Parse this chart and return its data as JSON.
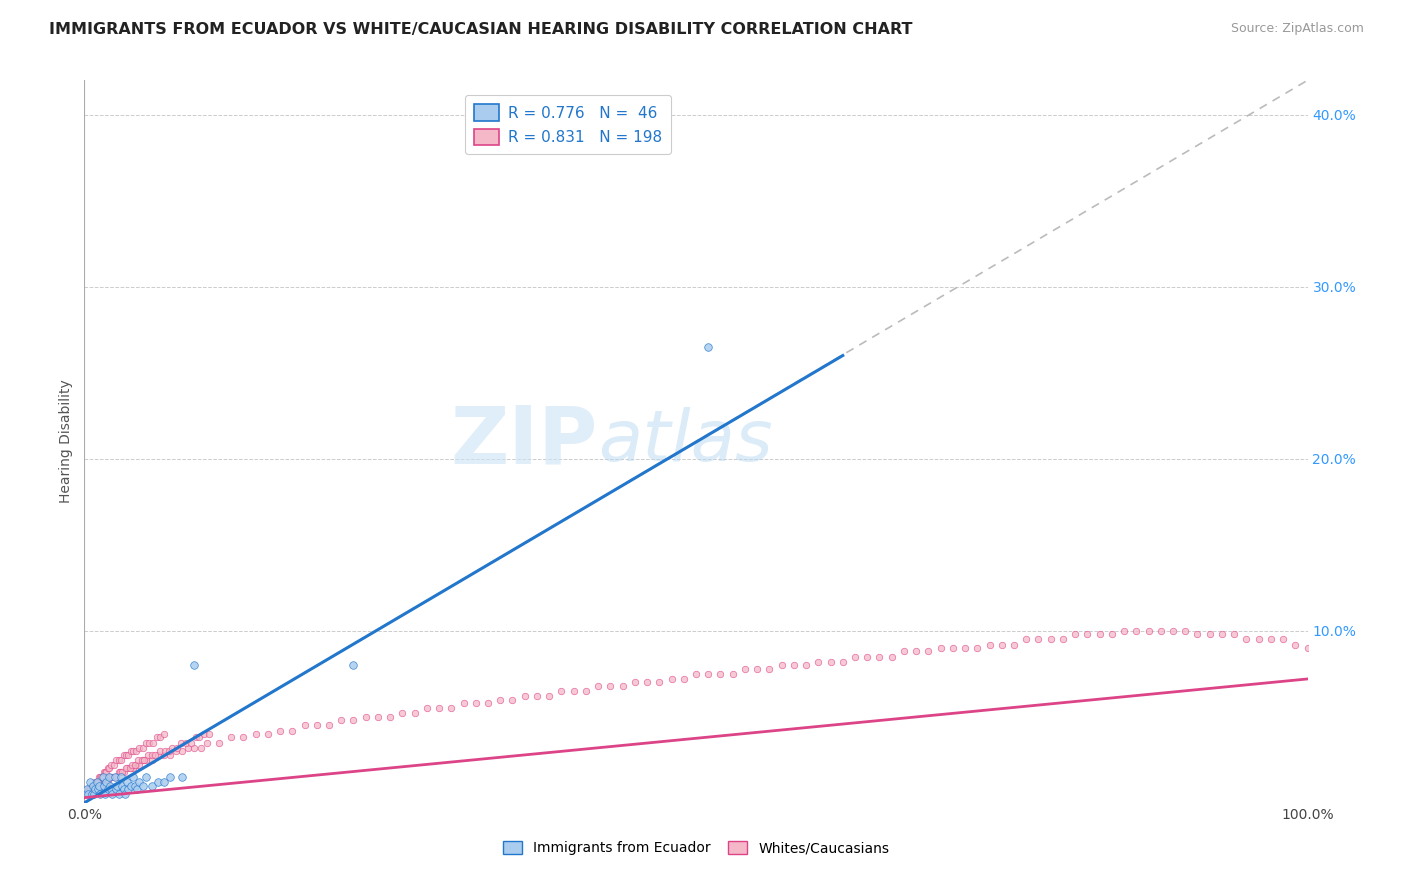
{
  "title": "IMMIGRANTS FROM ECUADOR VS WHITE/CAUCASIAN HEARING DISABILITY CORRELATION CHART",
  "source": "Source: ZipAtlas.com",
  "ylabel": "Hearing Disability",
  "xlim": [
    0.0,
    1.0
  ],
  "ylim": [
    0.0,
    0.42
  ],
  "x_ticks": [
    0.0,
    0.2,
    0.4,
    0.6,
    0.8,
    1.0
  ],
  "x_tick_labels": [
    "0.0%",
    "",
    "",
    "",
    "",
    "100.0%"
  ],
  "y_ticks_right": [
    0.0,
    0.1,
    0.2,
    0.3,
    0.4
  ],
  "y_tick_labels_right": [
    "",
    "10.0%",
    "20.0%",
    "30.0%",
    "40.0%"
  ],
  "legend_line1": "R = 0.776   N =  46",
  "legend_line2": "R = 0.831   N = 198",
  "legend_label1": "Immigrants from Ecuador",
  "legend_label2": "Whites/Caucasians",
  "color_blue_fill": "#aaccee",
  "color_blue_line": "#2277cc",
  "color_pink_fill": "#f4b8c8",
  "color_pink_line": "#dd4488",
  "color_ref_line": "#bbbbbb",
  "color_legend_text": "#2277cc",
  "color_grid": "#cccccc",
  "watermark_zip": "ZIP",
  "watermark_atlas": "atlas",
  "background_color": "#ffffff",
  "blue_line_x": [
    0.0,
    0.62
  ],
  "blue_line_y": [
    0.0,
    0.26
  ],
  "pink_line_x": [
    0.0,
    1.0
  ],
  "pink_line_y": [
    0.003,
    0.072
  ],
  "ref_line_x": [
    0.0,
    1.0
  ],
  "ref_line_y": [
    0.0,
    0.42
  ],
  "blue_scatter_x": [
    0.0,
    0.002,
    0.003,
    0.005,
    0.006,
    0.007,
    0.008,
    0.009,
    0.01,
    0.011,
    0.012,
    0.013,
    0.015,
    0.016,
    0.017,
    0.018,
    0.019,
    0.02,
    0.021,
    0.022,
    0.023,
    0.025,
    0.026,
    0.027,
    0.028,
    0.03,
    0.031,
    0.032,
    0.033,
    0.035,
    0.036,
    0.038,
    0.04,
    0.041,
    0.043,
    0.045,
    0.048,
    0.05,
    0.055,
    0.06,
    0.065,
    0.07,
    0.08,
    0.09,
    0.22,
    0.51
  ],
  "blue_scatter_y": [
    0.005,
    0.008,
    0.005,
    0.012,
    0.005,
    0.01,
    0.005,
    0.008,
    0.012,
    0.008,
    0.01,
    0.005,
    0.015,
    0.01,
    0.005,
    0.012,
    0.008,
    0.015,
    0.01,
    0.008,
    0.005,
    0.015,
    0.008,
    0.01,
    0.005,
    0.015,
    0.01,
    0.008,
    0.005,
    0.012,
    0.008,
    0.01,
    0.015,
    0.01,
    0.008,
    0.012,
    0.01,
    0.015,
    0.01,
    0.012,
    0.012,
    0.015,
    0.015,
    0.08,
    0.08,
    0.265
  ],
  "pink_scatter_x": [
    0.0,
    0.002,
    0.004,
    0.006,
    0.008,
    0.01,
    0.012,
    0.014,
    0.016,
    0.018,
    0.02,
    0.022,
    0.025,
    0.028,
    0.03,
    0.032,
    0.035,
    0.038,
    0.04,
    0.042,
    0.045,
    0.048,
    0.05,
    0.055,
    0.06,
    0.065,
    0.07,
    0.075,
    0.08,
    0.085,
    0.09,
    0.095,
    0.1,
    0.11,
    0.12,
    0.13,
    0.14,
    0.15,
    0.16,
    0.17,
    0.18,
    0.19,
    0.2,
    0.21,
    0.22,
    0.23,
    0.24,
    0.25,
    0.26,
    0.27,
    0.28,
    0.29,
    0.3,
    0.31,
    0.32,
    0.33,
    0.34,
    0.35,
    0.36,
    0.37,
    0.38,
    0.39,
    0.4,
    0.41,
    0.42,
    0.43,
    0.44,
    0.45,
    0.46,
    0.47,
    0.48,
    0.49,
    0.5,
    0.51,
    0.52,
    0.53,
    0.54,
    0.55,
    0.56,
    0.57,
    0.58,
    0.59,
    0.6,
    0.61,
    0.62,
    0.63,
    0.64,
    0.65,
    0.66,
    0.67,
    0.68,
    0.69,
    0.7,
    0.71,
    0.72,
    0.73,
    0.74,
    0.75,
    0.76,
    0.77,
    0.78,
    0.79,
    0.8,
    0.81,
    0.82,
    0.83,
    0.84,
    0.85,
    0.86,
    0.87,
    0.88,
    0.89,
    0.9,
    0.91,
    0.92,
    0.93,
    0.94,
    0.95,
    0.96,
    0.97,
    0.98,
    0.99,
    1.0,
    0.001,
    0.003,
    0.005,
    0.007,
    0.009,
    0.011,
    0.013,
    0.015,
    0.017,
    0.019,
    0.021,
    0.023,
    0.026,
    0.029,
    0.031,
    0.034,
    0.037,
    0.039,
    0.041,
    0.044,
    0.047,
    0.049,
    0.052,
    0.055,
    0.058,
    0.062,
    0.066,
    0.069,
    0.072,
    0.076,
    0.079,
    0.083,
    0.087,
    0.091,
    0.094,
    0.098,
    0.102,
    0.0,
    0.001,
    0.002,
    0.003,
    0.004,
    0.005,
    0.006,
    0.007,
    0.008,
    0.009,
    0.01,
    0.011,
    0.012,
    0.013,
    0.014,
    0.015,
    0.016,
    0.017,
    0.018,
    0.019,
    0.02,
    0.022,
    0.024,
    0.026,
    0.028,
    0.03,
    0.032,
    0.034,
    0.036,
    0.038,
    0.04,
    0.042,
    0.045,
    0.048,
    0.05,
    0.053,
    0.056,
    0.059,
    0.062,
    0.065
  ],
  "pink_scatter_y": [
    0.005,
    0.005,
    0.008,
    0.008,
    0.01,
    0.01,
    0.01,
    0.012,
    0.012,
    0.012,
    0.015,
    0.015,
    0.015,
    0.018,
    0.018,
    0.018,
    0.02,
    0.02,
    0.02,
    0.022,
    0.022,
    0.025,
    0.025,
    0.025,
    0.028,
    0.028,
    0.028,
    0.03,
    0.03,
    0.032,
    0.032,
    0.032,
    0.035,
    0.035,
    0.038,
    0.038,
    0.04,
    0.04,
    0.042,
    0.042,
    0.045,
    0.045,
    0.045,
    0.048,
    0.048,
    0.05,
    0.05,
    0.05,
    0.052,
    0.052,
    0.055,
    0.055,
    0.055,
    0.058,
    0.058,
    0.058,
    0.06,
    0.06,
    0.062,
    0.062,
    0.062,
    0.065,
    0.065,
    0.065,
    0.068,
    0.068,
    0.068,
    0.07,
    0.07,
    0.07,
    0.072,
    0.072,
    0.075,
    0.075,
    0.075,
    0.075,
    0.078,
    0.078,
    0.078,
    0.08,
    0.08,
    0.08,
    0.082,
    0.082,
    0.082,
    0.085,
    0.085,
    0.085,
    0.085,
    0.088,
    0.088,
    0.088,
    0.09,
    0.09,
    0.09,
    0.09,
    0.092,
    0.092,
    0.092,
    0.095,
    0.095,
    0.095,
    0.095,
    0.098,
    0.098,
    0.098,
    0.098,
    0.1,
    0.1,
    0.1,
    0.1,
    0.1,
    0.1,
    0.098,
    0.098,
    0.098,
    0.098,
    0.095,
    0.095,
    0.095,
    0.095,
    0.092,
    0.09,
    0.005,
    0.005,
    0.005,
    0.008,
    0.008,
    0.01,
    0.01,
    0.01,
    0.012,
    0.012,
    0.015,
    0.015,
    0.015,
    0.018,
    0.018,
    0.02,
    0.02,
    0.022,
    0.022,
    0.025,
    0.025,
    0.025,
    0.028,
    0.028,
    0.028,
    0.03,
    0.03,
    0.03,
    0.032,
    0.032,
    0.035,
    0.035,
    0.035,
    0.038,
    0.038,
    0.04,
    0.04,
    0.005,
    0.005,
    0.005,
    0.008,
    0.008,
    0.008,
    0.01,
    0.01,
    0.01,
    0.012,
    0.012,
    0.012,
    0.015,
    0.015,
    0.015,
    0.015,
    0.018,
    0.018,
    0.018,
    0.02,
    0.02,
    0.022,
    0.022,
    0.025,
    0.025,
    0.025,
    0.028,
    0.028,
    0.028,
    0.03,
    0.03,
    0.03,
    0.032,
    0.032,
    0.035,
    0.035,
    0.035,
    0.038,
    0.038,
    0.04
  ]
}
